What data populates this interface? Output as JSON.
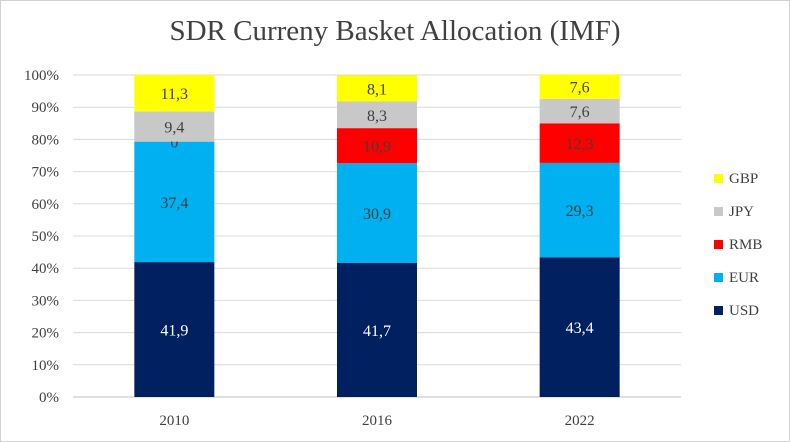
{
  "chart_data": {
    "type": "bar",
    "stacked": true,
    "title": "SDR Curreny Basket Allocation (IMF)",
    "categories": [
      "2010",
      "2016",
      "2022"
    ],
    "series": [
      {
        "name": "USD",
        "color": "#002060",
        "values": [
          41.9,
          41.7,
          43.4
        ],
        "labels": [
          "41,9",
          "41,7",
          "43,4"
        ],
        "label_color": "#ffffff"
      },
      {
        "name": "EUR",
        "color": "#00b0f0",
        "values": [
          37.4,
          30.9,
          29.3
        ],
        "labels": [
          "37,4",
          "30,9",
          "29,3"
        ],
        "label_color": "#404040"
      },
      {
        "name": "RMB",
        "color": "#ff0000",
        "values": [
          0,
          10.9,
          12.3
        ],
        "labels": [
          "0",
          "10,9",
          "12,3"
        ],
        "label_color": "#404040"
      },
      {
        "name": "JPY",
        "color": "#c8c8c8",
        "values": [
          9.4,
          8.3,
          7.6
        ],
        "labels": [
          "9,4",
          "8,3",
          "7,6"
        ],
        "label_color": "#404040"
      },
      {
        "name": "GBP",
        "color": "#ffff00",
        "values": [
          11.3,
          8.1,
          7.6
        ],
        "labels": [
          "11,3",
          "8,1",
          "7,6"
        ],
        "label_color": "#404040"
      }
    ],
    "y_tick_labels": [
      "0%",
      "10%",
      "20%",
      "30%",
      "40%",
      "50%",
      "60%",
      "70%",
      "80%",
      "90%",
      "100%"
    ],
    "ylim": [
      0,
      100
    ],
    "grid": true,
    "legend_position": "right"
  }
}
